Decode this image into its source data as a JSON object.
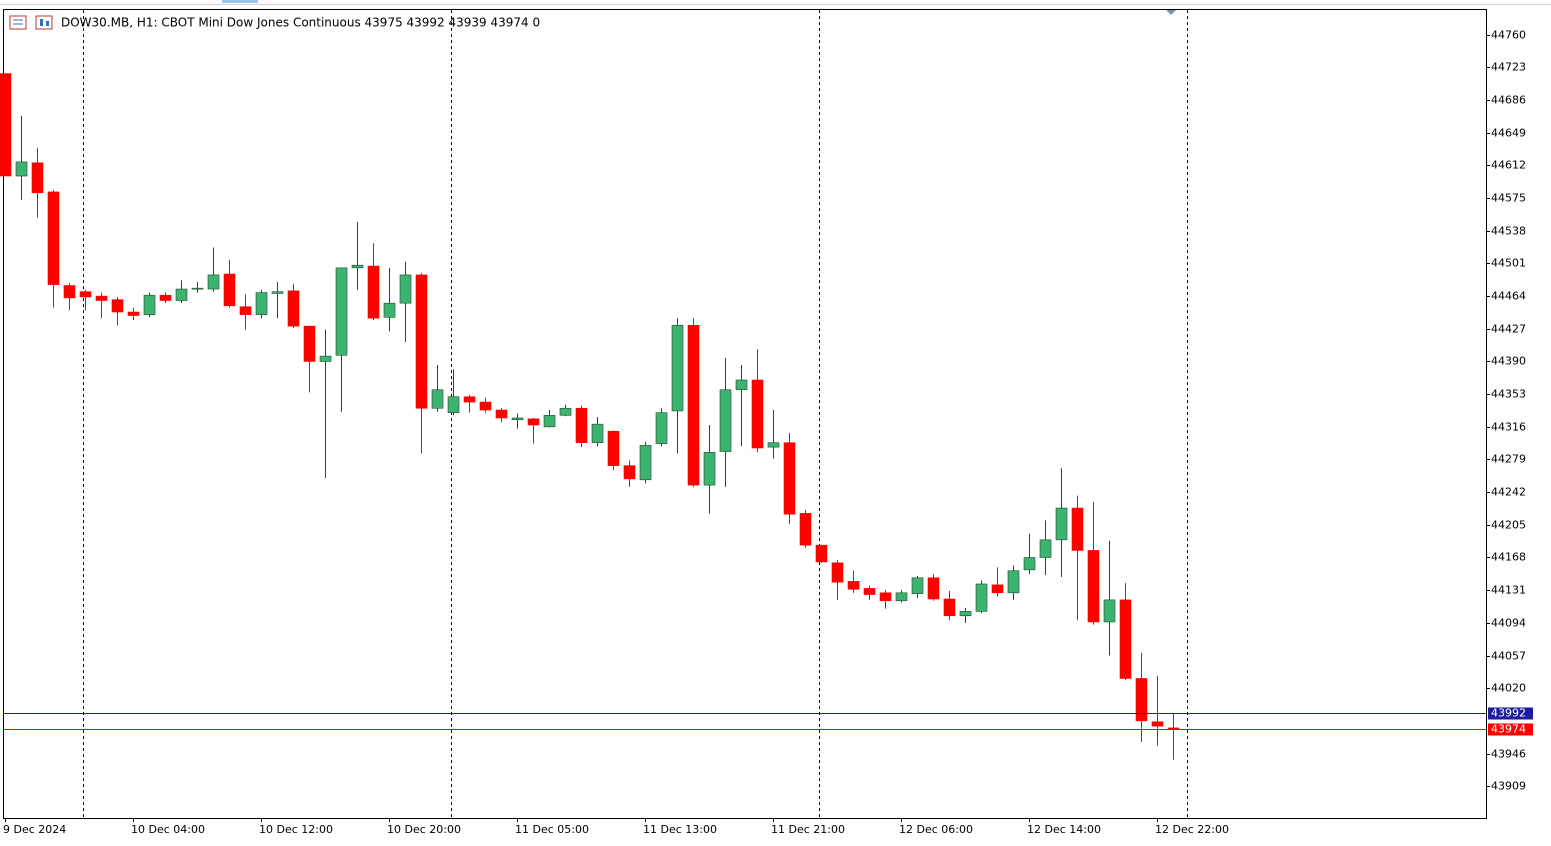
{
  "chart_data": {
    "type": "candlestick",
    "title": "DOW30.MB, H1:  CBOT Mini Dow Jones Continuous  43975 43992 43939 43974  0",
    "x": [
      "9 Dec 2024",
      null,
      null,
      null,
      null,
      null,
      null,
      null,
      "10 Dec 04:00",
      null,
      null,
      null,
      null,
      null,
      null,
      null,
      "10 Dec 12:00",
      null,
      null,
      null,
      null,
      null,
      null,
      null,
      "10 Dec 20:00",
      null,
      null,
      null,
      null,
      null,
      null,
      null,
      "11 Dec 05:00",
      null,
      null,
      null,
      null,
      null,
      null,
      null,
      "11 Dec 13:00",
      null,
      null,
      null,
      null,
      null,
      null,
      null,
      "11 Dec 21:00",
      null,
      null,
      null,
      null,
      null,
      null,
      null,
      "12 Dec 06:00",
      null,
      null,
      null,
      null,
      null,
      null,
      null,
      "12 Dec 14:00",
      null,
      null,
      null,
      null,
      null,
      null,
      null,
      "12 Dec 22:00",
      null
    ],
    "open": [
      44716,
      44600,
      44615,
      44582,
      44476,
      44469,
      44464,
      44460,
      44446,
      44443,
      44465,
      44459,
      44472,
      44472,
      44489,
      44452,
      44443,
      44467,
      44470,
      44430,
      44390,
      44397,
      44496,
      44498,
      44440,
      44456,
      44488,
      44337,
      44332,
      44350,
      44344,
      44335,
      44324,
      44325,
      44316,
      44329,
      44337,
      44298,
      44311,
      44272,
      44256,
      44297,
      44334,
      44431,
      44250,
      44288,
      44358,
      44369,
      44293,
      44298,
      44218,
      44182,
      44162,
      44141,
      44133,
      44128,
      44119,
      44127,
      44145,
      44121,
      44102,
      44107,
      44137,
      44128,
      44154,
      44168,
      44188,
      44224,
      44176,
      44095,
      44120,
      44031,
      43982,
      43975
    ],
    "high": [
      44716,
      44668,
      44632,
      44584,
      44479,
      44471,
      44468,
      44463,
      44451,
      44468,
      44468,
      44482,
      44480,
      44519,
      44505,
      44466,
      44471,
      44480,
      44478,
      44430,
      44426,
      44496,
      44548,
      44524,
      44496,
      44503,
      44490,
      44386,
      44381,
      44352,
      44349,
      44337,
      44331,
      44326,
      44335,
      44341,
      44340,
      44327,
      44312,
      44278,
      44299,
      44337,
      44439,
      44439,
      44318,
      44394,
      44386,
      44404,
      44335,
      44309,
      44222,
      44182,
      44165,
      44153,
      44136,
      44131,
      44131,
      44147,
      44149,
      44130,
      44111,
      44142,
      44157,
      44159,
      44195,
      44210,
      44269,
      44238,
      44231,
      44187,
      44139,
      44060,
      44034,
      43992
    ],
    "low": [
      44600,
      44573,
      44553,
      44451,
      44448,
      44448,
      44439,
      44431,
      44437,
      44440,
      44456,
      44456,
      44468,
      44469,
      44451,
      44426,
      44439,
      44439,
      44428,
      44355,
      44258,
      44333,
      44471,
      44437,
      44424,
      44412,
      44286,
      44333,
      44329,
      44332,
      44332,
      44321,
      44314,
      44297,
      44315,
      44328,
      44293,
      44294,
      44267,
      44248,
      44252,
      44294,
      44286,
      44248,
      44218,
      44248,
      44294,
      44287,
      44280,
      44206,
      44179,
      44162,
      44120,
      44128,
      44120,
      44110,
      44117,
      44122,
      44119,
      44097,
      44094,
      44105,
      44124,
      44120,
      44149,
      44148,
      44146,
      44097,
      44092,
      44057,
      44029,
      43959,
      43955,
      43939
    ],
    "close": [
      44600,
      44616,
      44581,
      44477,
      44462,
      44463,
      44459,
      44446,
      44442,
      44465,
      44459,
      44472,
      44473,
      44488,
      44453,
      44443,
      44468,
      44469,
      44430,
      44390,
      44396,
      44496,
      44499,
      44439,
      44456,
      44488,
      44337,
      44358,
      44350,
      44344,
      44335,
      44326,
      44326,
      44318,
      44329,
      44337,
      44298,
      44319,
      44272,
      44257,
      44295,
      44332,
      44431,
      44250,
      44287,
      44358,
      44369,
      44292,
      44298,
      44217,
      44182,
      44163,
      44140,
      44132,
      44126,
      44119,
      44128,
      44145,
      44121,
      44102,
      44107,
      44138,
      44128,
      44153,
      44168,
      44188,
      44224,
      44176,
      44095,
      44120,
      44031,
      43983,
      43977,
      43974
    ],
    "up_color": "#3cb371",
    "down_color": "#ff0000",
    "ylim": [
      43873,
      44788
    ],
    "yticks": [
      44760,
      44723,
      44686,
      44649,
      44612,
      44575,
      44538,
      44501,
      44464,
      44427,
      44390,
      44353,
      44316,
      44279,
      44242,
      44205,
      44168,
      44131,
      44094,
      44057,
      44020,
      43946,
      43909
    ],
    "price_lines": [
      {
        "value": 43992,
        "color": "#1c1c9c"
      },
      {
        "value": 43974,
        "color": "#ff0000"
      }
    ]
  }
}
